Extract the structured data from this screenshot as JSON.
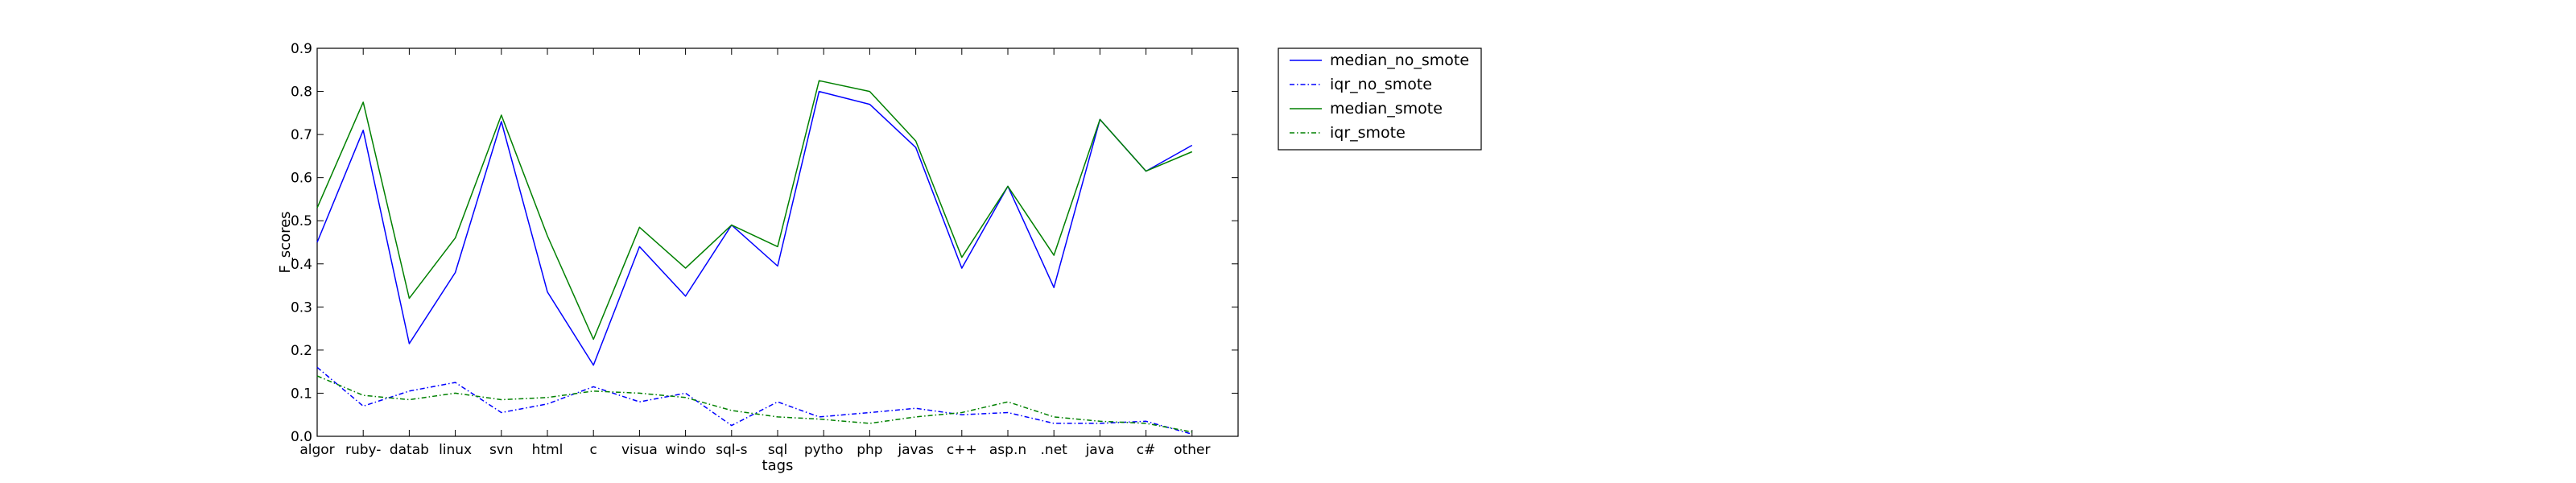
{
  "chart_data": {
    "type": "line",
    "title": "",
    "xlabel": "tags",
    "ylabel": "F_scores",
    "ylim": [
      0,
      0.9
    ],
    "yticks": [
      "0.0",
      "0.1",
      "0.2",
      "0.3",
      "0.4",
      "0.5",
      "0.6",
      "0.7",
      "0.8",
      "0.9"
    ],
    "grid": false,
    "legend_position": "outside-right-top",
    "categories": [
      "algor",
      "ruby-",
      "datab",
      "linux",
      "svn",
      "html",
      "c",
      "visua",
      "windo",
      "sql-s",
      "sql",
      "pytho",
      "php",
      "javas",
      "c++",
      "asp.n",
      ".net",
      "java",
      "c#",
      "other"
    ],
    "x_positions": [
      0,
      1,
      2,
      3,
      4,
      5,
      6,
      7,
      8,
      9,
      10,
      11,
      12,
      13,
      14,
      15,
      16,
      17,
      18,
      19
    ],
    "xlim": [
      0,
      20
    ],
    "series": [
      {
        "name": "median_no_smote",
        "color": "#0000ff",
        "style": "solid",
        "x": [
          0,
          1,
          2,
          3,
          4,
          5,
          6,
          7,
          8,
          9,
          10,
          10.9,
          12,
          13,
          14,
          15,
          16,
          17,
          18,
          19
        ],
        "values": [
          0.45,
          0.71,
          0.215,
          0.38,
          0.73,
          0.335,
          0.165,
          0.44,
          0.325,
          0.49,
          0.395,
          0.8,
          0.77,
          0.67,
          0.39,
          0.58,
          0.345,
          0.735,
          0.615,
          0.675
        ]
      },
      {
        "name": "iqr_no_smote",
        "color": "#0000ff",
        "style": "dashdot",
        "x": [
          0,
          1,
          2,
          3,
          4,
          5,
          6,
          7,
          8,
          9,
          10,
          10.9,
          12,
          13,
          14,
          15,
          16,
          17,
          18,
          19
        ],
        "values": [
          0.16,
          0.07,
          0.105,
          0.125,
          0.055,
          0.075,
          0.115,
          0.08,
          0.1,
          0.025,
          0.08,
          0.045,
          0.055,
          0.065,
          0.05,
          0.055,
          0.03,
          0.03,
          0.035,
          0.005
        ]
      },
      {
        "name": "median_smote",
        "color": "#008000",
        "style": "solid",
        "x": [
          0,
          1,
          2,
          3,
          4,
          5,
          6,
          7,
          8,
          9,
          10,
          10.9,
          12,
          13,
          14,
          15,
          16,
          17,
          18,
          19
        ],
        "values": [
          0.53,
          0.775,
          0.32,
          0.46,
          0.745,
          0.465,
          0.225,
          0.485,
          0.39,
          0.49,
          0.44,
          0.825,
          0.8,
          0.685,
          0.415,
          0.58,
          0.42,
          0.735,
          0.615,
          0.66
        ]
      },
      {
        "name": "iqr_smote",
        "color": "#008000",
        "style": "dashdot",
        "x": [
          0,
          1,
          2,
          3,
          4,
          5,
          6,
          7,
          8,
          9,
          10,
          10.9,
          12,
          13,
          14,
          15,
          16,
          17,
          18,
          19
        ],
        "values": [
          0.14,
          0.095,
          0.085,
          0.1,
          0.085,
          0.09,
          0.105,
          0.1,
          0.09,
          0.06,
          0.045,
          0.04,
          0.03,
          0.045,
          0.055,
          0.08,
          0.045,
          0.035,
          0.03,
          0.01
        ]
      }
    ]
  }
}
